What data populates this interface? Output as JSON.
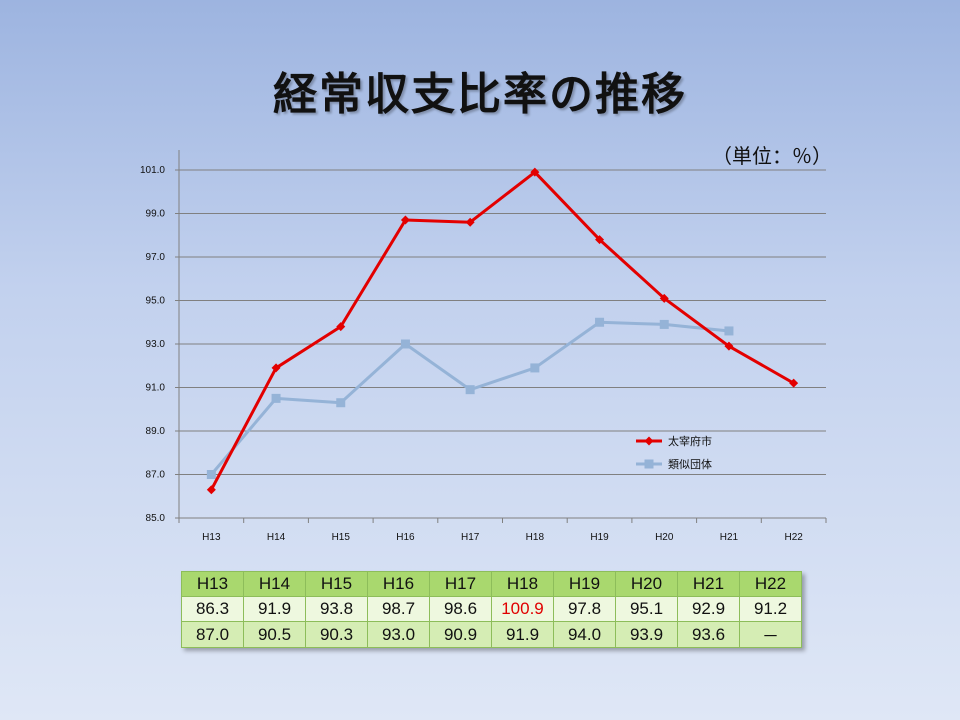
{
  "slide": {
    "title": "経常収支比率の推移",
    "unit_label": "（単位：％）"
  },
  "colors": {
    "city": "#e30000",
    "similar": "#95b3d7",
    "grid": "#808080"
  },
  "chart_data": {
    "type": "line",
    "title": "",
    "xlabel": "",
    "ylabel": "",
    "categories": [
      "H13",
      "H14",
      "H15",
      "H16",
      "H17",
      "H18",
      "H19",
      "H20",
      "H21",
      "H22"
    ],
    "ylim": [
      85.0,
      101.0
    ],
    "yticks": [
      "85.0",
      "87.0",
      "89.0",
      "91.0",
      "93.0",
      "95.0",
      "97.0",
      "99.0",
      "101.0"
    ],
    "grid": true,
    "legend_position": "lower-right",
    "series": [
      {
        "name": "太宰府市",
        "color": "#e30000",
        "marker": "diamond",
        "values": [
          86.3,
          91.9,
          93.8,
          98.7,
          98.6,
          100.9,
          97.8,
          95.1,
          92.9,
          91.2
        ]
      },
      {
        "name": "類似団体",
        "color": "#95b3d7",
        "marker": "square",
        "values": [
          87.0,
          90.5,
          90.3,
          93.0,
          90.9,
          91.9,
          94.0,
          93.9,
          93.6,
          null
        ]
      }
    ]
  },
  "table": {
    "header": [
      "H13",
      "H14",
      "H15",
      "H16",
      "H17",
      "H18",
      "H19",
      "H20",
      "H21",
      "H22"
    ],
    "city_row": [
      "86.3",
      "91.9",
      "93.8",
      "98.7",
      "98.6",
      "100.9",
      "97.8",
      "95.1",
      "92.9",
      "91.2"
    ],
    "similar_row": [
      "87.0",
      "90.5",
      "90.3",
      "93.0",
      "90.9",
      "91.9",
      "94.0",
      "93.9",
      "93.6",
      "－"
    ],
    "highlight": {
      "row": "city_row",
      "index": 5
    }
  }
}
